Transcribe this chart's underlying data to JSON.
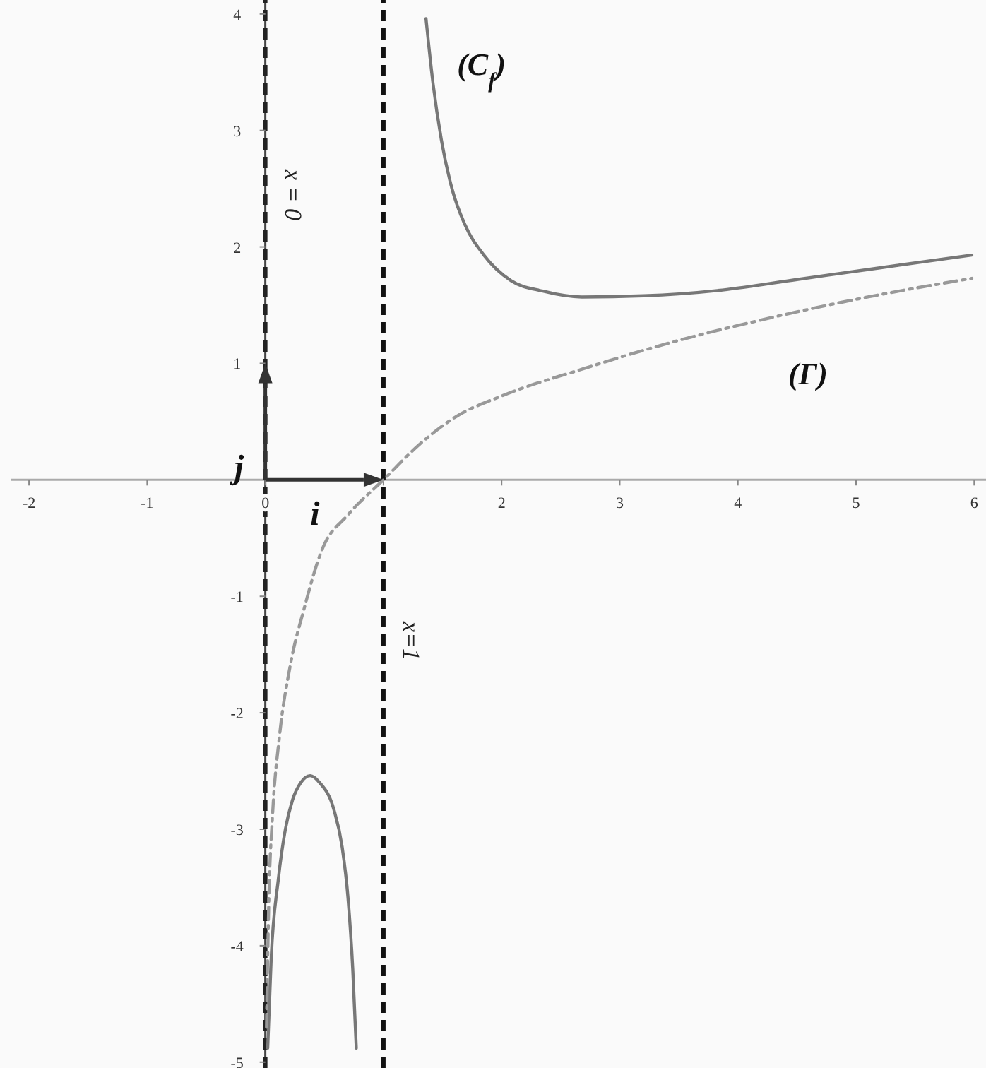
{
  "chart_data": {
    "type": "line",
    "xlim": [
      -2.15,
      6.1
    ],
    "ylim": [
      -5.05,
      4.12
    ],
    "xticks": [
      -2,
      -1,
      0,
      {
        "value": 1,
        "label": null
      },
      2,
      3,
      4,
      5,
      6
    ],
    "yticks": [
      -5,
      -4,
      -3,
      -2,
      -1,
      1,
      2,
      3,
      4
    ],
    "series": [
      {
        "name": "(C$_{f}$)",
        "color": "#777777",
        "line_style": "solid",
        "x": [
          0.02,
          0.05,
          0.11,
          0.17,
          0.23,
          0.3,
          0.38,
          0.46,
          0.58,
          0.65,
          0.7,
          0.74,
          0.77,
          1.0,
          1.36,
          1.42,
          1.49,
          1.58,
          1.69,
          1.85,
          2.08,
          2.35,
          2.68,
          3.2,
          3.87,
          4.5,
          5.2,
          5.98
        ],
        "values": [
          -4.88,
          -4.1,
          -3.43,
          -3.0,
          -2.75,
          -2.6,
          -2.54,
          -2.6,
          -2.83,
          -3.15,
          -3.59,
          -4.2,
          -4.88,
          null,
          3.96,
          3.4,
          2.92,
          2.5,
          2.19,
          1.93,
          1.71,
          1.62,
          1.57,
          1.58,
          1.63,
          1.72,
          1.82,
          1.93
        ]
      },
      {
        "name": "(Γ)",
        "color": "#999999",
        "line_style": "dashed",
        "x": [
          0.01,
          0.03,
          0.06,
          0.12,
          0.21,
          0.33,
          0.48,
          0.7,
          1.0,
          1.3,
          1.61,
          2.0,
          2.68,
          3.4,
          4.27,
          5.1,
          5.98
        ],
        "values": [
          -4.7,
          -3.6,
          -2.9,
          -2.2,
          -1.6,
          -1.1,
          -0.6,
          -0.3,
          0,
          0.3,
          0.54,
          0.72,
          0.95,
          1.17,
          1.39,
          1.57,
          1.73
        ]
      }
    ],
    "ref_lines": [
      {
        "axis": "x",
        "value": 0,
        "label": "x = 0",
        "color": "#222222",
        "line_style": "dashed"
      },
      {
        "axis": "x",
        "value": 1,
        "label": "x=1",
        "color": "#111111",
        "line_style": "dashed"
      }
    ],
    "annotations": [
      {
        "text": "j⃗",
        "x": 0,
        "y": 1
      },
      {
        "text": "i⃗",
        "x": 1,
        "y": 0
      }
    ]
  }
}
